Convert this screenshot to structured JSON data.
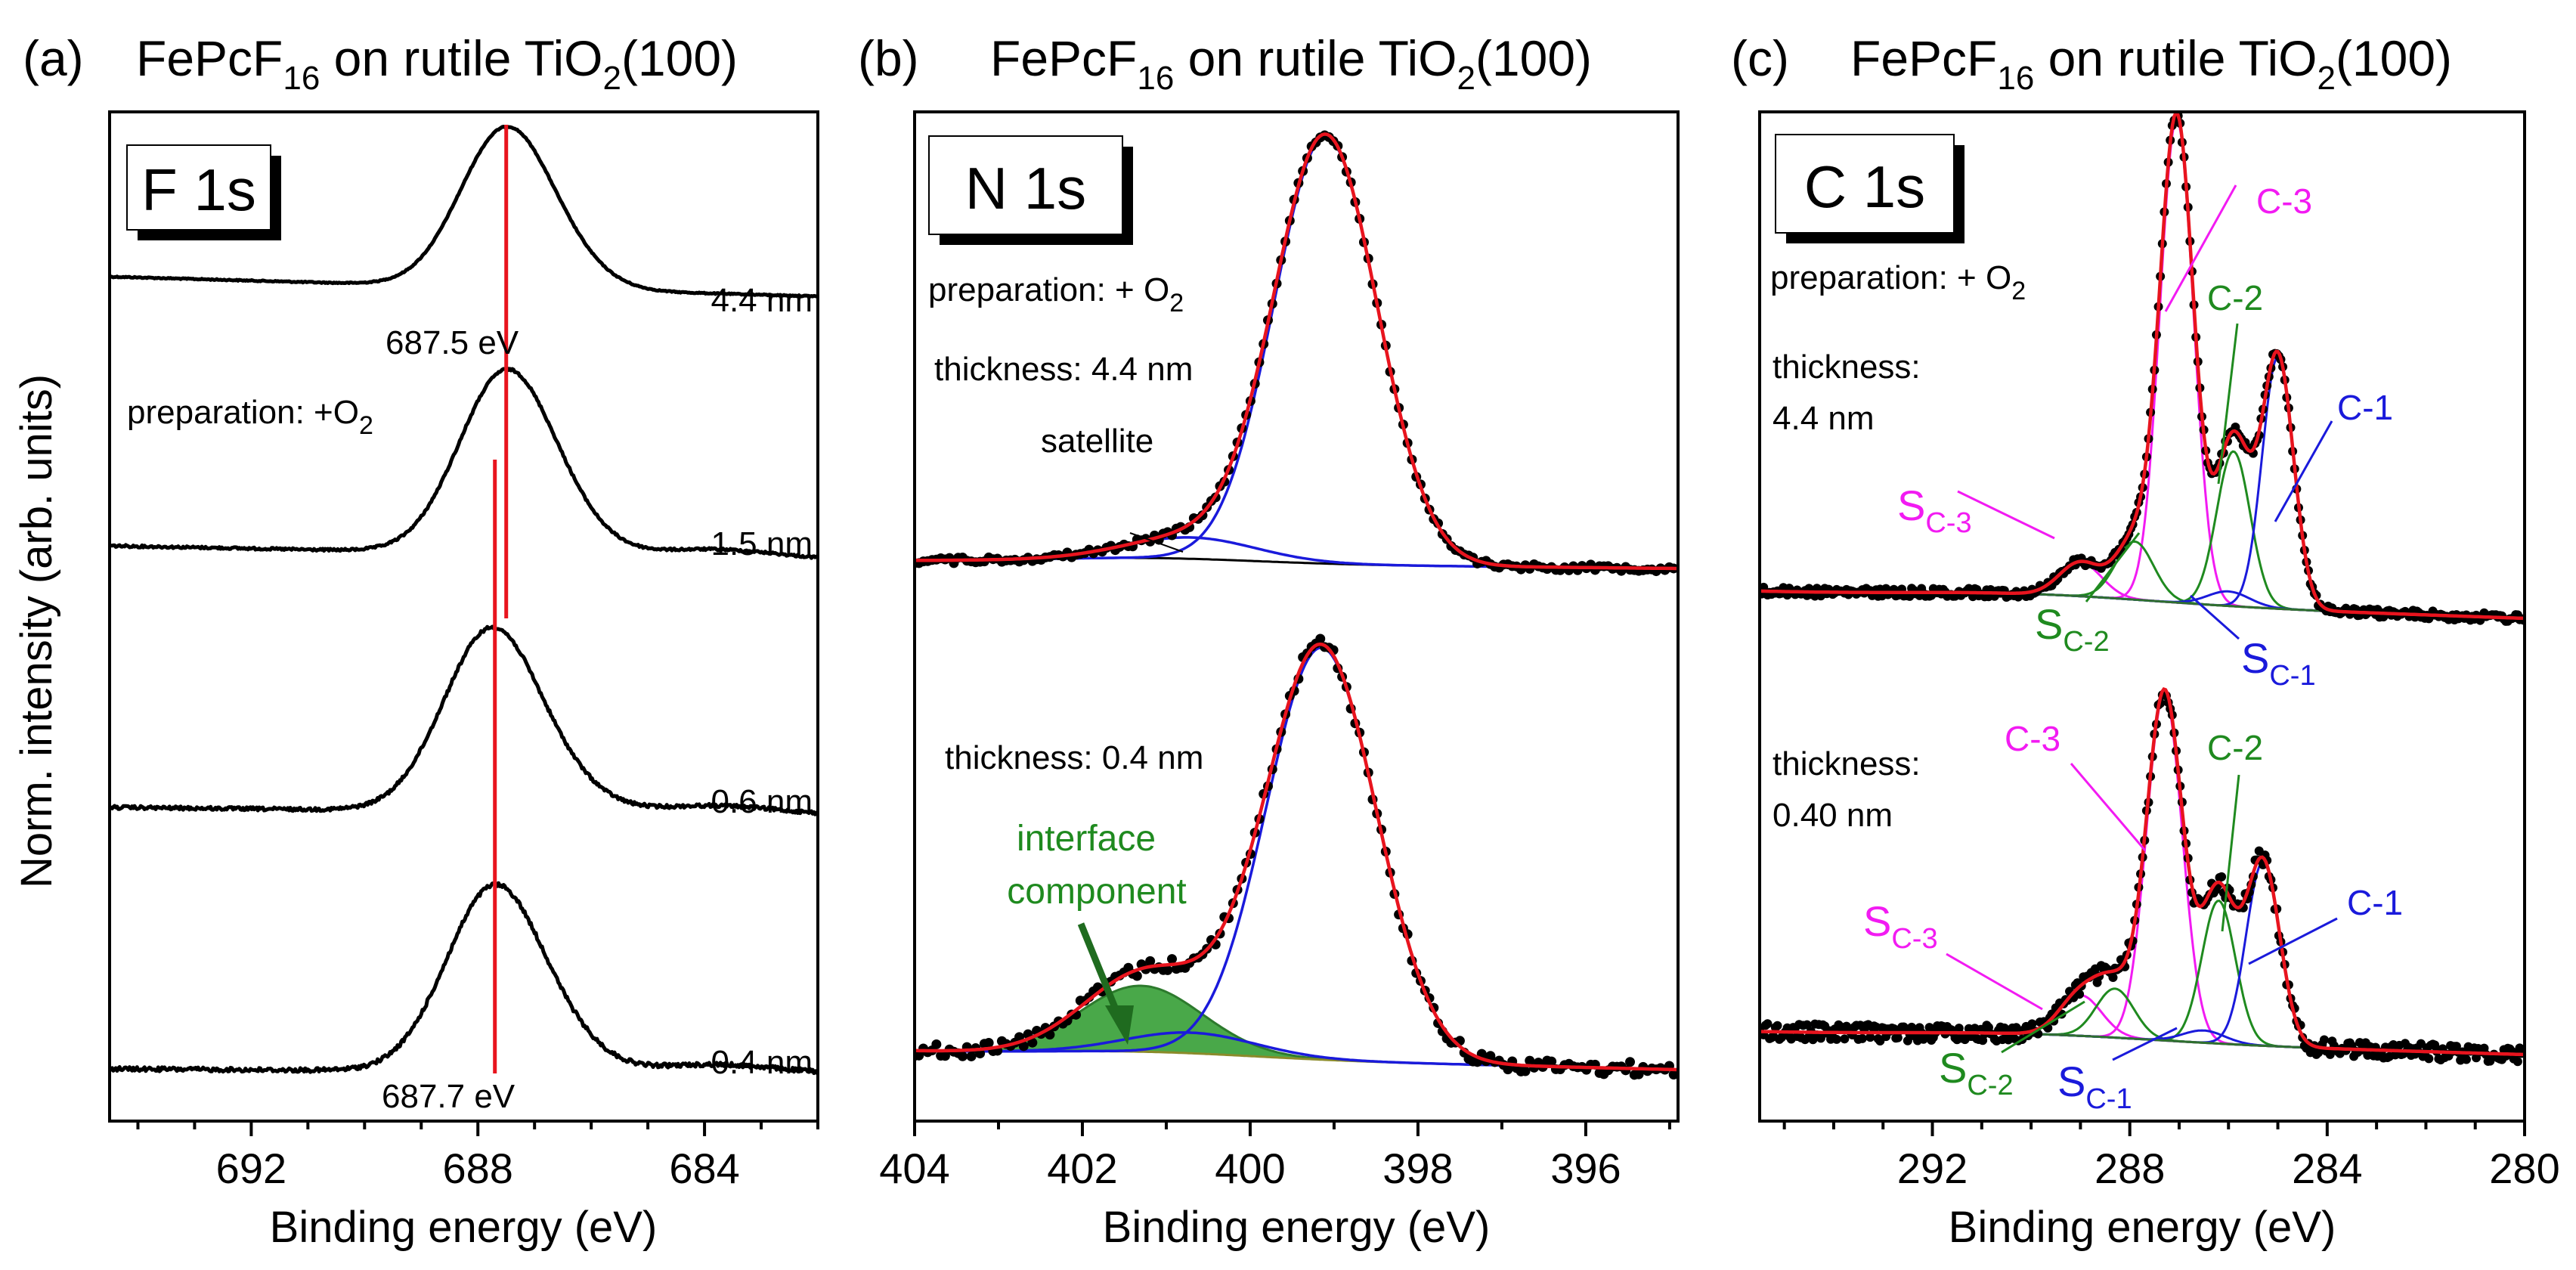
{
  "ylabel": "Norm. intensity (arb. units)",
  "colors": {
    "fit": "#e8141e",
    "component_blue": "#1a1adb",
    "component_green": "#1f8a1f",
    "component_magenta": "#f21bf2",
    "interface_fill": "#3fa33f",
    "data": "#000000"
  },
  "chart_data": [
    {
      "panel": "(a)",
      "type": "line",
      "title": {
        "pre": "FePcF",
        "sub1": "16",
        "mid": " on rutile TiO",
        "sub2": "2",
        "post": "(100)"
      },
      "core_level": "F 1s",
      "xlabel": "Binding energy (eV)",
      "xlim": [
        694.5,
        682
      ],
      "xticks": [
        692,
        688,
        684
      ],
      "preparation_label": "preparation: +O",
      "preparation_sub": "2",
      "peak_label_top": "687.5 eV",
      "peak_label_bottom": "687.7 eV",
      "series": [
        {
          "name": "4.4 nm",
          "center": 687.5,
          "fwhm": 1.9,
          "peak": 1.0
        },
        {
          "name": "1.5 nm",
          "center": 687.5,
          "fwhm": 1.95,
          "peak": 1.0
        },
        {
          "name": "0.6 nm",
          "center": 687.75,
          "fwhm": 2.0,
          "peak": 1.0
        },
        {
          "name": "0.4 nm",
          "center": 687.7,
          "fwhm": 2.0,
          "peak": 1.0
        }
      ]
    },
    {
      "panel": "(b)",
      "type": "line",
      "title": {
        "pre": "FePcF",
        "sub1": "16",
        "mid": " on rutile TiO",
        "sub2": "2",
        "post": "(100)"
      },
      "core_level": "N 1s",
      "xlabel": "Binding energy (eV)",
      "xlim": [
        404,
        394.9
      ],
      "xticks": [
        404,
        402,
        400,
        398,
        396
      ],
      "preparation_label": "preparation: + O",
      "preparation_sub": "2",
      "thickness_top": "thickness: 4.4 nm",
      "thickness_bottom": "thickness: 0.4 nm",
      "satellite_label": "satellite",
      "interface_label_1": "interface",
      "interface_label_2": "component",
      "series": [
        {
          "name": "4.4 nm",
          "main_center": 399.1,
          "main_fwhm": 1.45,
          "satellite_center": 400.7,
          "satellite_rel": 0.05
        },
        {
          "name": "0.4 nm",
          "main_center": 399.15,
          "main_fwhm": 1.55,
          "satellite_center": 400.7,
          "satellite_rel": 0.05,
          "interface_center": 401.3,
          "interface_rel": 0.16
        }
      ]
    },
    {
      "panel": "(c)",
      "type": "line",
      "title": {
        "pre": "FePcF",
        "sub1": "16",
        "mid": " on rutile TiO",
        "sub2": "2",
        "post": "(100)"
      },
      "core_level": "C 1s",
      "xlabel": "Binding energy (eV)",
      "xlim": [
        295.5,
        280
      ],
      "xticks": [
        292,
        288,
        284,
        280
      ],
      "preparation_label": "preparation: + O",
      "preparation_sub": "2",
      "thickness_top_1": "thickness:",
      "thickness_top_2": "4.4 nm",
      "thickness_bottom_1": "thickness:",
      "thickness_bottom_2": "0.40 nm",
      "components": {
        "C3": "C-3",
        "C2": "C-2",
        "C1": "C-1",
        "S": "S",
        "SC3": "C-3",
        "SC2": "C-2",
        "SC1": "C-1"
      },
      "series": [
        {
          "name": "4.4 nm",
          "C3": {
            "center": 287.05,
            "height": 1.0,
            "fwhm": 0.8
          },
          "C2": {
            "center": 285.9,
            "height": 0.32,
            "fwhm": 0.8
          },
          "C1": {
            "center": 285.0,
            "height": 0.52,
            "fwhm": 0.75
          },
          "SC3": {
            "center": 289.0,
            "height": 0.07,
            "fwhm": 1.0
          },
          "SC2": {
            "center": 287.9,
            "height": 0.12,
            "fwhm": 0.9
          },
          "SC1": {
            "center": 286.0,
            "height": 0.03,
            "fwhm": 1.0
          }
        },
        {
          "name": "0.40 nm",
          "C3": {
            "center": 287.3,
            "height": 0.85,
            "fwhm": 0.85
          },
          "C2": {
            "center": 286.2,
            "height": 0.35,
            "fwhm": 0.8
          },
          "C1": {
            "center": 285.3,
            "height": 0.45,
            "fwhm": 0.8
          },
          "SC3": {
            "center": 289.0,
            "height": 0.1,
            "fwhm": 1.0
          },
          "SC2": {
            "center": 288.3,
            "height": 0.12,
            "fwhm": 0.9
          },
          "SC1": {
            "center": 286.5,
            "height": 0.03,
            "fwhm": 1.0
          }
        }
      ]
    }
  ]
}
